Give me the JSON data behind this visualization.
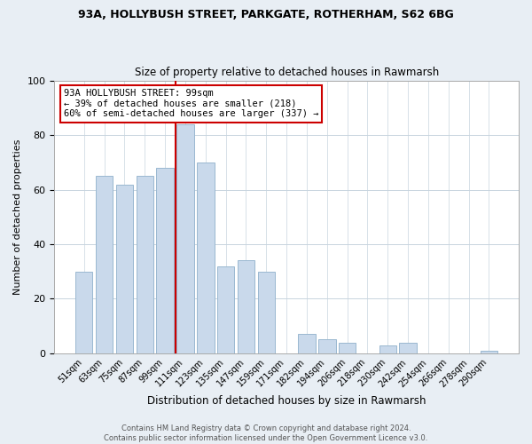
{
  "title1": "93A, HOLLYBUSH STREET, PARKGATE, ROTHERHAM, S62 6BG",
  "title2": "Size of property relative to detached houses in Rawmarsh",
  "xlabel": "Distribution of detached houses by size in Rawmarsh",
  "ylabel": "Number of detached properties",
  "bar_labels": [
    "51sqm",
    "63sqm",
    "75sqm",
    "87sqm",
    "99sqm",
    "111sqm",
    "123sqm",
    "135sqm",
    "147sqm",
    "159sqm",
    "171sqm",
    "182sqm",
    "194sqm",
    "206sqm",
    "218sqm",
    "230sqm",
    "242sqm",
    "254sqm",
    "266sqm",
    "278sqm",
    "290sqm"
  ],
  "bar_values": [
    30,
    65,
    62,
    65,
    68,
    84,
    70,
    32,
    34,
    30,
    0,
    7,
    5,
    4,
    0,
    3,
    4,
    0,
    0,
    0,
    1
  ],
  "bar_color": "#c9d9eb",
  "bar_edge_color": "#9ab8d0",
  "vline_color": "#cc0000",
  "annotation_text": "93A HOLLYBUSH STREET: 99sqm\n← 39% of detached houses are smaller (218)\n60% of semi-detached houses are larger (337) →",
  "annotation_box_color": "#ffffff",
  "annotation_box_edge": "#cc0000",
  "ylim": [
    0,
    100
  ],
  "yticks": [
    0,
    20,
    40,
    60,
    80,
    100
  ],
  "footer1": "Contains HM Land Registry data © Crown copyright and database right 2024.",
  "footer2": "Contains public sector information licensed under the Open Government Licence v3.0.",
  "bg_color": "#e8eef4",
  "plot_bg_color": "#ffffff",
  "grid_color": "#c8d4de"
}
